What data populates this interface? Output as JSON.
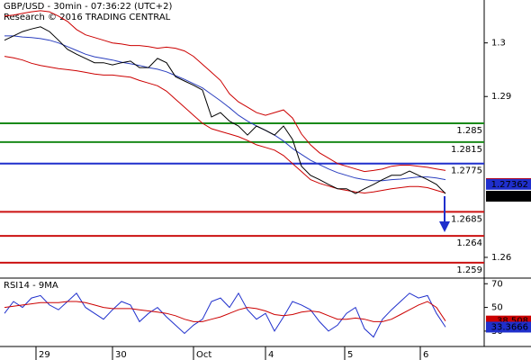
{
  "chart_data": [
    {
      "type": "line",
      "title": "GBP/USD - 30min - 07:36:22 (UTC+2)",
      "subtitle": "Research © 2016 TRADING CENTRAL",
      "x": [
        0,
        1,
        2,
        3,
        4,
        5,
        6,
        7,
        8,
        9,
        10,
        11,
        12,
        13,
        14,
        15,
        16,
        17,
        18,
        19,
        20,
        21,
        22,
        23,
        24,
        25,
        26,
        27,
        28,
        29,
        30,
        31,
        32,
        33,
        34,
        35,
        36,
        37,
        38,
        39,
        40,
        41,
        42,
        43,
        44,
        45,
        46,
        47,
        48,
        49
      ],
      "xlim": [
        -0.5,
        53.3
      ],
      "xticks": [
        {
          "value": 3.5,
          "label": "29"
        },
        {
          "value": 12,
          "label": "30"
        },
        {
          "value": 21,
          "label": "Oct"
        },
        {
          "value": 29,
          "label": "4"
        },
        {
          "value": 37.8,
          "label": "5"
        },
        {
          "value": 46.2,
          "label": "6"
        }
      ],
      "ylim": [
        1.2563,
        1.308
      ],
      "yticks": [
        1.3,
        1.29,
        1.26
      ],
      "series": [
        {
          "color": "#cc0000",
          "values": [
            1.305,
            1.3052,
            1.3055,
            1.3058,
            1.306,
            1.3058,
            1.305,
            1.304,
            1.3025,
            1.3015,
            1.301,
            1.3005,
            1.3,
            1.2998,
            1.2995,
            1.2995,
            1.2993,
            1.299,
            1.2992,
            1.299,
            1.2985,
            1.2975,
            1.296,
            1.2945,
            1.293,
            1.2905,
            1.289,
            1.288,
            1.287,
            1.2865,
            1.287,
            1.2875,
            1.286,
            1.283,
            1.281,
            1.2795,
            1.2785,
            1.2775,
            1.277,
            1.2765,
            1.276,
            1.2762,
            1.2765,
            1.277,
            1.2772,
            1.2772,
            1.277,
            1.2768,
            1.2765,
            1.2762
          ]
        },
        {
          "color": "#cc0000",
          "values": [
            1.2975,
            1.2972,
            1.2968,
            1.2962,
            1.2958,
            1.2955,
            1.2952,
            1.295,
            1.2948,
            1.2945,
            1.2942,
            1.294,
            1.294,
            1.2938,
            1.2936,
            1.293,
            1.2925,
            1.292,
            1.291,
            1.2895,
            1.288,
            1.2865,
            1.285,
            1.284,
            1.2835,
            1.283,
            1.2825,
            1.2818,
            1.281,
            1.2805,
            1.28,
            1.279,
            1.2775,
            1.276,
            1.2745,
            1.2738,
            1.2733,
            1.2728,
            1.2725,
            1.2722,
            1.272,
            1.2722,
            1.2725,
            1.2728,
            1.273,
            1.2732,
            1.2732,
            1.273,
            1.2725,
            1.272
          ]
        },
        {
          "color": "#2b3fbf",
          "values": [
            1.3013,
            1.3013,
            1.3011,
            1.301,
            1.3008,
            1.3005,
            1.3,
            1.2993,
            1.2986,
            1.2979,
            1.2974,
            1.2971,
            1.2968,
            1.2964,
            1.2961,
            1.2958,
            1.2954,
            1.2951,
            1.2946,
            1.2939,
            1.2932,
            1.2924,
            1.2916,
            1.2904,
            1.2892,
            1.2879,
            1.2865,
            1.2854,
            1.2845,
            1.2837,
            1.2828,
            1.2817,
            1.2803,
            1.2792,
            1.2781,
            1.2773,
            1.2765,
            1.2758,
            1.2753,
            1.2748,
            1.2745,
            1.2743,
            1.2743,
            1.2745,
            1.2746,
            1.2748,
            1.275,
            1.275,
            1.2748,
            1.2745
          ]
        },
        {
          "color": "#000000",
          "values": [
            1.3005,
            1.3013,
            1.3021,
            1.3026,
            1.303,
            1.3021,
            1.3005,
            1.2988,
            1.2979,
            1.2971,
            1.2963,
            1.2963,
            1.2959,
            1.2963,
            1.2966,
            1.2954,
            1.2954,
            1.2971,
            1.2963,
            1.2937,
            1.2929,
            1.2921,
            1.2912,
            1.2862,
            1.287,
            1.2854,
            1.2845,
            1.2828,
            1.2845,
            1.2837,
            1.2828,
            1.2845,
            1.282,
            1.277,
            1.2753,
            1.2745,
            1.2736,
            1.2728,
            1.2728,
            1.2719,
            1.2728,
            1.2736,
            1.2745,
            1.2753,
            1.2753,
            1.2761,
            1.2753,
            1.2745,
            1.2736,
            1.2719
          ]
        }
      ],
      "levels": [
        {
          "value": 1.285,
          "color": "#1a8a1a"
        },
        {
          "value": 1.2815,
          "color": "#1a8a1a"
        },
        {
          "value": 1.2775,
          "color": "#1f2fcc"
        },
        {
          "value": 1.2685,
          "color": "#cc1111"
        },
        {
          "value": 1.264,
          "color": "#cc1111"
        },
        {
          "value": 1.259,
          "color": "#cc1111"
        }
      ],
      "markers": [
        {
          "value": 1.27376,
          "color": "#cc0000"
        },
        {
          "value": 1.27362,
          "color": "#1f2fcc"
        },
        {
          "value": 1.2714,
          "color": "#000000"
        }
      ]
    },
    {
      "type": "line",
      "title": "RSI14 - 9MA",
      "ylim": [
        17,
        74
      ],
      "yticks": [
        70,
        50,
        30
      ],
      "series": [
        {
          "color": "#1f2fcc",
          "values": [
            45,
            55,
            50,
            58,
            60,
            52,
            48,
            55,
            62,
            50,
            45,
            40,
            48,
            55,
            52,
            38,
            45,
            50,
            42,
            35,
            28,
            35,
            40,
            55,
            58,
            50,
            62,
            48,
            40,
            45,
            30,
            42,
            55,
            52,
            48,
            38,
            30,
            35,
            45,
            50,
            32,
            25,
            40,
            48,
            55,
            62,
            58,
            60,
            45,
            33.4
          ]
        },
        {
          "color": "#cc0000",
          "values": [
            50,
            51,
            52,
            53,
            54,
            54,
            54,
            55,
            55,
            54,
            52,
            50,
            49,
            49,
            49,
            48,
            47,
            46,
            45,
            43,
            40,
            38,
            38,
            40,
            42,
            45,
            48,
            50,
            49,
            47,
            44,
            43,
            44,
            46,
            47,
            46,
            43,
            40,
            40,
            41,
            40,
            38,
            38,
            40,
            44,
            48,
            52,
            55,
            50,
            38.5
          ]
        }
      ],
      "markers": [
        {
          "value": 38.508,
          "color": "#cc0000"
        },
        {
          "value": 33.3666,
          "color": "#1f2fcc"
        }
      ]
    }
  ]
}
